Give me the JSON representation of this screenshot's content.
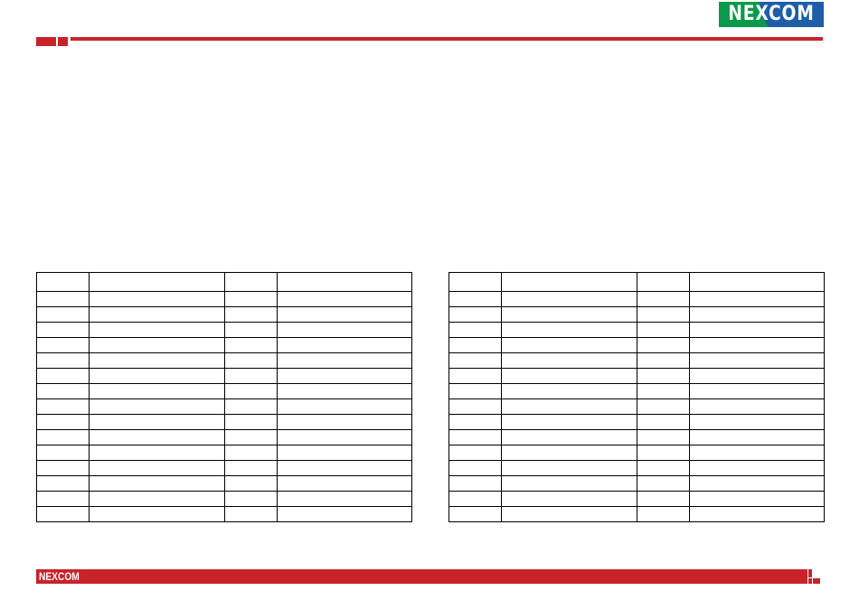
{
  "header": {
    "logo_text": "NEXCOM",
    "accent_color": "#c9232a",
    "logo_green": "#0a9a4a",
    "logo_blue": "#1e5ea8"
  },
  "footer": {
    "logo_text": "NEXCOM"
  },
  "tables": [
    {
      "header": [
        "",
        "",
        "",
        ""
      ],
      "rows": [
        [
          "",
          "",
          "",
          ""
        ],
        [
          "",
          "",
          "",
          ""
        ],
        [
          "",
          "",
          "",
          ""
        ],
        [
          "",
          "",
          "",
          ""
        ],
        [
          "",
          "",
          "",
          ""
        ],
        [
          "",
          "",
          "",
          ""
        ],
        [
          "",
          "",
          "",
          ""
        ],
        [
          "",
          "",
          "",
          ""
        ],
        [
          "",
          "",
          "",
          ""
        ],
        [
          "",
          "",
          "",
          ""
        ],
        [
          "",
          "",
          "",
          ""
        ],
        [
          "",
          "",
          "",
          ""
        ],
        [
          "",
          "",
          "",
          ""
        ],
        [
          "",
          "",
          "",
          ""
        ],
        [
          "",
          "",
          "",
          ""
        ]
      ]
    },
    {
      "header": [
        "",
        "",
        "",
        ""
      ],
      "rows": [
        [
          "",
          "",
          "",
          ""
        ],
        [
          "",
          "",
          "",
          ""
        ],
        [
          "",
          "",
          "",
          ""
        ],
        [
          "",
          "",
          "",
          ""
        ],
        [
          "",
          "",
          "",
          ""
        ],
        [
          "",
          "",
          "",
          ""
        ],
        [
          "",
          "",
          "",
          ""
        ],
        [
          "",
          "",
          "",
          ""
        ],
        [
          "",
          "",
          "",
          ""
        ],
        [
          "",
          "",
          "",
          ""
        ],
        [
          "",
          "",
          "",
          ""
        ],
        [
          "",
          "",
          "",
          ""
        ],
        [
          "",
          "",
          "",
          ""
        ],
        [
          "",
          "",
          "",
          ""
        ],
        [
          "",
          "",
          "",
          ""
        ]
      ]
    }
  ]
}
